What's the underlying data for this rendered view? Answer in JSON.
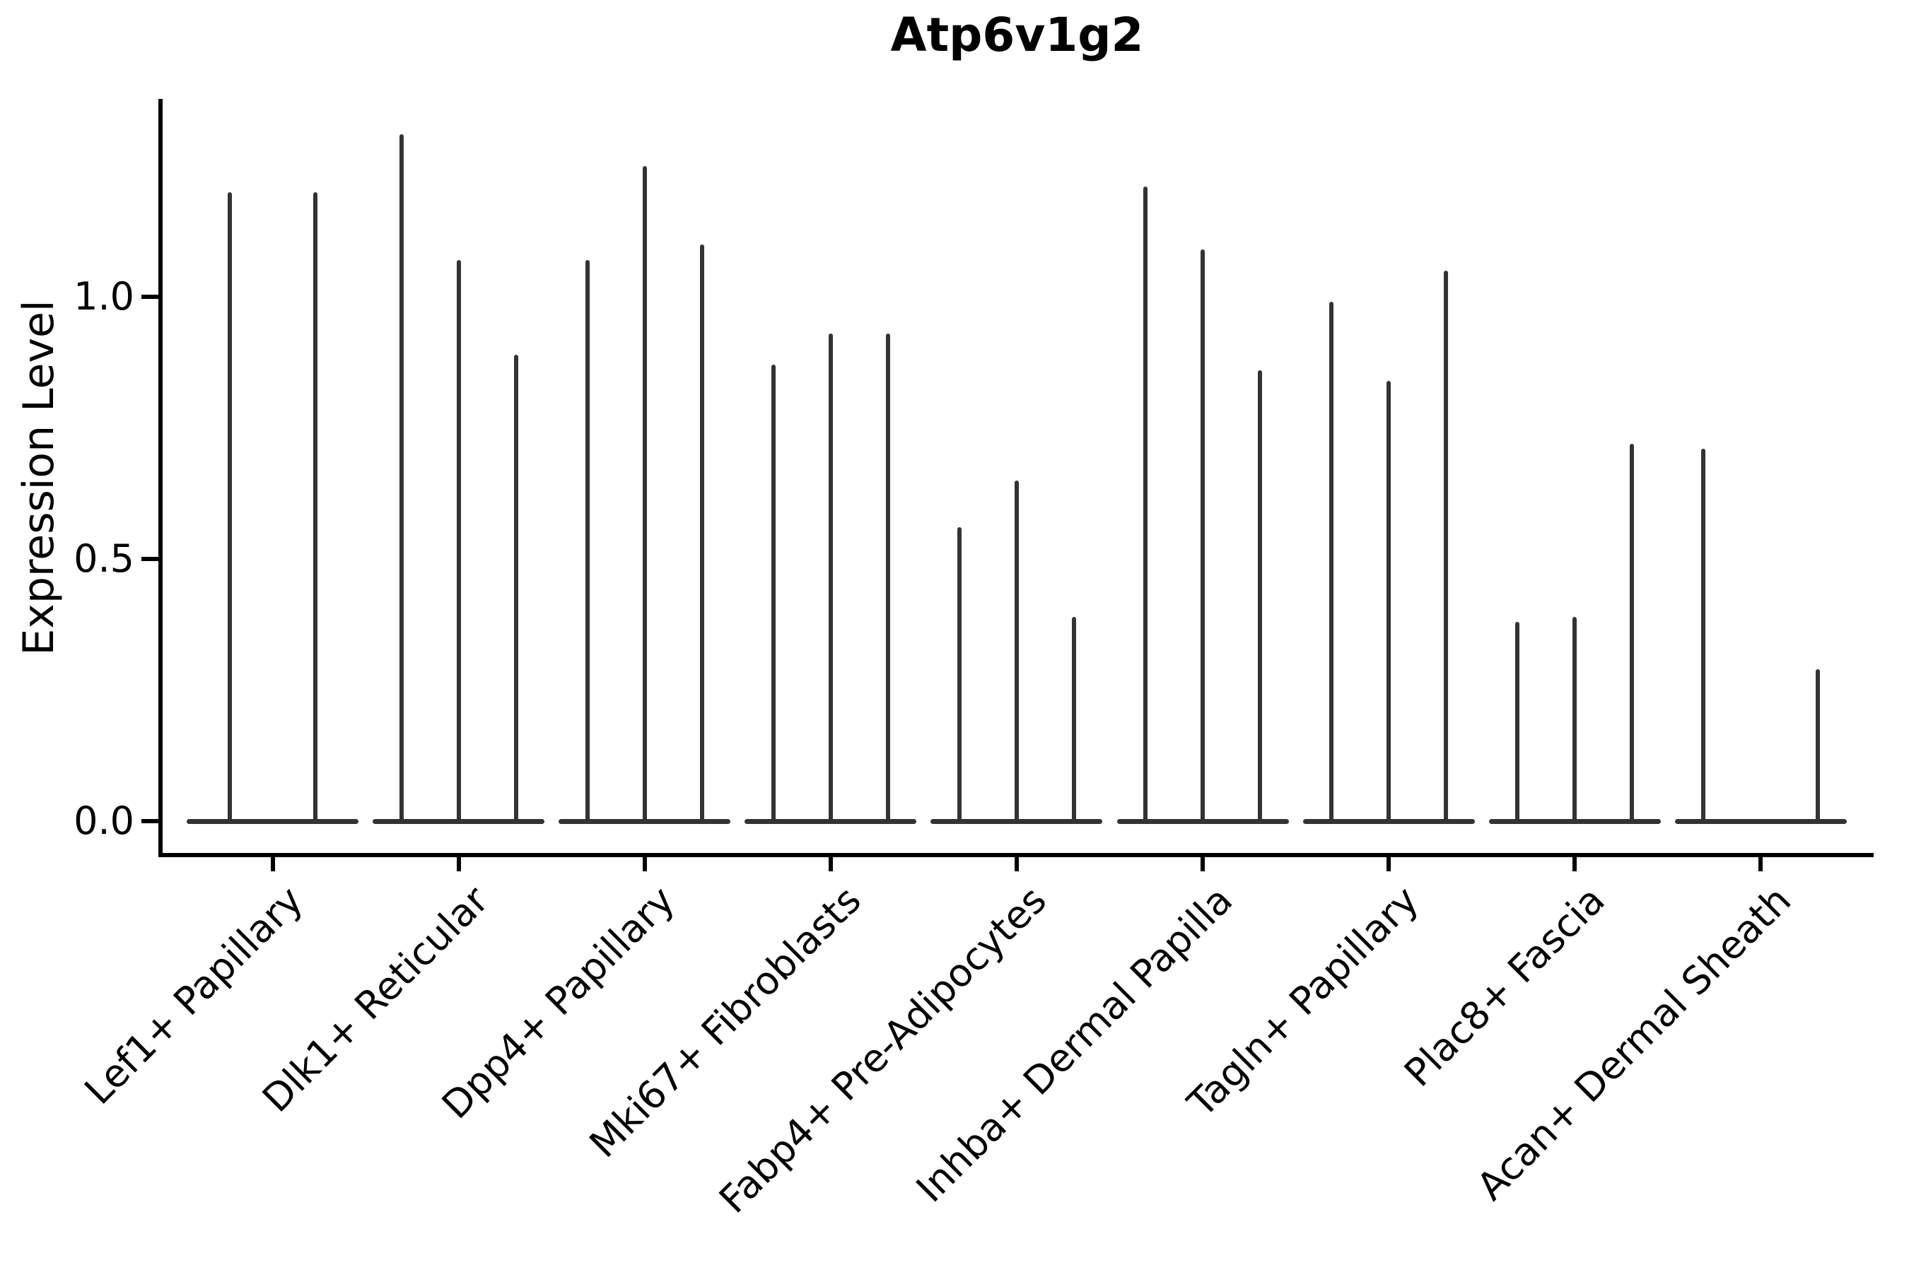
{
  "chart_data": {
    "type": "violin",
    "title": "Atp6v1g2",
    "ylabel": "Expression Level",
    "xlabel": "",
    "ytick_labels": [
      "0.0",
      "0.5",
      "1.0"
    ],
    "ytick_values": [
      0.0,
      0.5,
      1.0
    ],
    "ylim": [
      -0.065,
      1.38
    ],
    "grid": false,
    "legend": "none",
    "colors": {
      "violin": "#333333",
      "axis": "#000000",
      "background": "#ffffff"
    },
    "description": "Violin plot of Atp6v1g2 expression; expression is mostly zero so each violin renders as a flat base at 0 with a thin spike up to its maximum value",
    "categories": [
      "Lef1+ Papillary",
      "Dlk1+ Reticular",
      "Dpp4+ Papillary",
      "Mki67+ Fibroblasts",
      "Fabp4+ Pre-Adipocytes",
      "Inhba+ Dermal Papilla",
      "Tagln+ Papillary",
      "Plac8+ Fascia",
      "Acan+ Dermal Sheath"
    ],
    "groups": [
      {
        "category": "Lef1+ Papillary",
        "violins": [
          {
            "max": 1.2
          },
          {
            "max": 1.2
          }
        ]
      },
      {
        "category": "Dlk1+ Reticular",
        "violins": [
          {
            "max": 1.31
          },
          {
            "max": 1.07
          },
          {
            "max": 0.89
          }
        ]
      },
      {
        "category": "Dpp4+ Papillary",
        "violins": [
          {
            "max": 1.07
          },
          {
            "max": 1.25
          },
          {
            "max": 1.1
          }
        ]
      },
      {
        "category": "Mki67+ Fibroblasts",
        "violins": [
          {
            "max": 0.87
          },
          {
            "max": 0.93
          },
          {
            "max": 0.93
          }
        ]
      },
      {
        "category": "Fabp4+ Pre-Adipocytes",
        "violins": [
          {
            "max": 0.56
          },
          {
            "max": 0.65
          },
          {
            "max": 0.39
          }
        ]
      },
      {
        "category": "Inhba+ Dermal Papilla",
        "violins": [
          {
            "max": 1.21
          },
          {
            "max": 1.09
          },
          {
            "max": 0.86
          }
        ]
      },
      {
        "category": "Tagln+ Papillary",
        "violins": [
          {
            "max": 0.99
          },
          {
            "max": 0.84
          },
          {
            "max": 1.05
          }
        ]
      },
      {
        "category": "Plac8+ Fascia",
        "violins": [
          {
            "max": 0.38
          },
          {
            "max": 0.39
          },
          {
            "max": 0.72
          }
        ]
      },
      {
        "category": "Acan+ Dermal Sheath",
        "violins": [
          {
            "max": 0.71
          },
          {
            "max": 0.0
          },
          {
            "max": 0.29
          }
        ]
      }
    ]
  }
}
